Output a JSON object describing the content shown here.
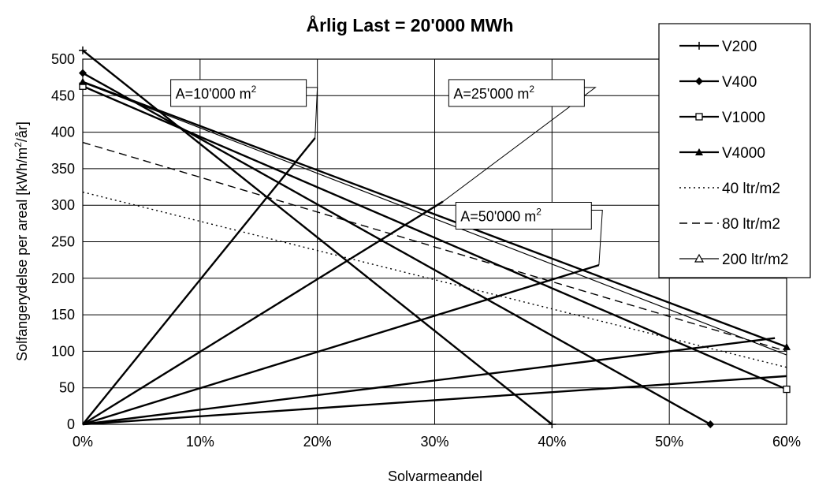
{
  "chart_data": {
    "type": "line",
    "title": "Årlig Last = 20'000 MWh",
    "xlabel": "Solvarmeandel",
    "ylabel": "Solfangerydelse per areal [kWh/m²/år]",
    "ylabel_parts": {
      "main": "Solfangerydelse per areal [kWh/m",
      "sup": "2",
      "tail": "/år]"
    },
    "xlim": [
      0,
      0.6
    ],
    "ylim": [
      0,
      500
    ],
    "x_ticks": [
      0,
      0.1,
      0.2,
      0.3,
      0.4,
      0.5,
      0.6
    ],
    "x_tick_labels": [
      "0%",
      "10%",
      "20%",
      "30%",
      "40%",
      "50%",
      "60%"
    ],
    "y_ticks": [
      0,
      50,
      100,
      150,
      200,
      250,
      300,
      350,
      400,
      450,
      500
    ],
    "y_tick_labels": [
      "0",
      "50",
      "100",
      "150",
      "200",
      "250",
      "300",
      "350",
      "400",
      "450",
      "500"
    ],
    "grid": true,
    "legend_position": "top-right",
    "series": [
      {
        "name": "V200",
        "marker": "plus",
        "dash": "solid",
        "show_markers": "ends",
        "x": [
          0.0,
          0.4
        ],
        "y": [
          512,
          0
        ]
      },
      {
        "name": "V400",
        "marker": "diamond",
        "dash": "solid",
        "show_markers": "ends",
        "x": [
          0.0,
          0.535
        ],
        "y": [
          481,
          0
        ]
      },
      {
        "name": "V1000",
        "marker": "square",
        "dash": "solid",
        "show_markers": "ends",
        "x": [
          0.0,
          0.6
        ],
        "y": [
          463,
          48
        ]
      },
      {
        "name": "V4000",
        "marker": "triangle-filled",
        "dash": "solid",
        "show_markers": "ends",
        "x": [
          0.0,
          0.6
        ],
        "y": [
          469,
          106
        ]
      },
      {
        "name": "40 ltr/m2",
        "marker": "none",
        "dash": "dotted",
        "show_markers": "none",
        "x": [
          0.0,
          0.6
        ],
        "y": [
          318,
          78
        ]
      },
      {
        "name": "80 ltr/m2",
        "marker": "none",
        "dash": "dashed",
        "show_markers": "none",
        "x": [
          0.0,
          0.6
        ],
        "y": [
          386,
          100
        ]
      },
      {
        "name": "200 ltr/m2",
        "marker": "triangle-open",
        "dash": "solid",
        "show_markers": "none",
        "x": [
          0.0,
          0.6
        ],
        "y": [
          468,
          95
        ]
      }
    ],
    "area_lines": [
      {
        "x": [
          0.0,
          0.198
        ],
        "y": [
          0,
          392
        ]
      },
      {
        "x": [
          0.0,
          0.307
        ],
        "y": [
          0,
          305
        ]
      },
      {
        "x": [
          0.0,
          0.44
        ],
        "y": [
          0,
          218
        ]
      },
      {
        "x": [
          0.0,
          0.59
        ],
        "y": [
          0,
          118
        ]
      },
      {
        "x": [
          0.0,
          0.6
        ],
        "y": [
          0,
          66
        ]
      }
    ],
    "annotations": [
      {
        "text": "A=10'000 m",
        "sup": "2",
        "box_x": 0.075,
        "box_y": 472,
        "tip_x": 0.198,
        "tip_y": 392
      },
      {
        "text": "A=25'000 m",
        "sup": "2",
        "box_x": 0.312,
        "box_y": 472,
        "tip_x": 0.307,
        "tip_y": 305
      },
      {
        "text": "A=50'000 m",
        "sup": "2",
        "box_x": 0.318,
        "box_y": 304,
        "tip_x": 0.44,
        "tip_y": 218
      }
    ]
  }
}
